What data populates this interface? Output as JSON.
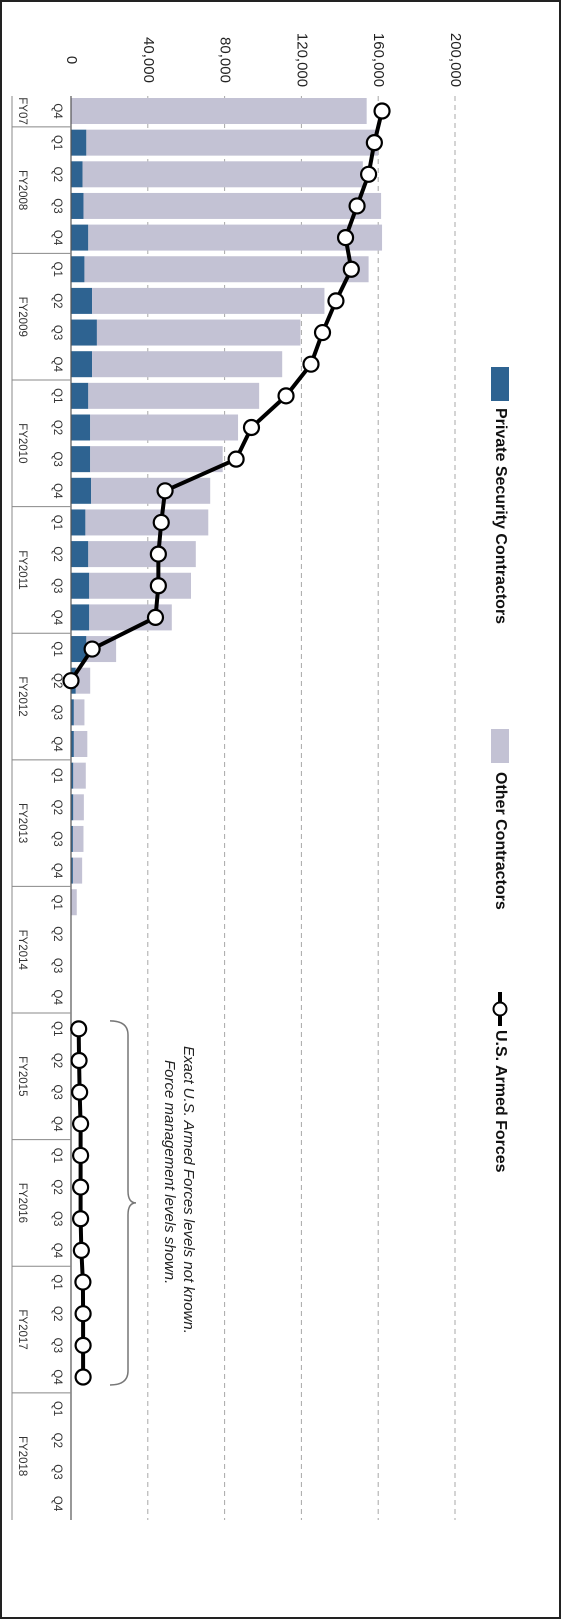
{
  "chart_data": {
    "type": "bar",
    "orientation": "rotated-90-clockwise",
    "stacked": true,
    "ylim": [
      0,
      200000
    ],
    "y_ticks": [
      "0",
      "40,000",
      "80,000",
      "120,000",
      "160,000",
      "200,000"
    ],
    "grid": "dashed",
    "legend_placement": "top",
    "categories": [
      "FY07 Q4",
      "FY2008 Q1",
      "FY2008 Q2",
      "FY2008 Q3",
      "FY2008 Q4",
      "FY2009 Q1",
      "FY2009 Q2",
      "FY2009 Q3",
      "FY2009 Q4",
      "FY2010 Q1",
      "FY2010 Q2",
      "FY2010 Q3",
      "FY2010 Q4",
      "FY2011 Q1",
      "FY2011 Q2",
      "FY2011 Q3",
      "FY2011 Q4",
      "FY2012 Q1",
      "FY2012 Q2",
      "FY2012 Q3",
      "FY2012 Q4",
      "FY2013 Q1",
      "FY2013 Q2",
      "FY2013 Q3",
      "FY2013 Q4",
      "FY2014 Q1",
      "FY2014 Q2",
      "FY2014 Q3",
      "FY2014 Q4",
      "FY2015 Q1",
      "FY2015 Q2",
      "FY2015 Q3",
      "FY2015 Q4",
      "FY2016 Q1",
      "FY2016 Q2",
      "FY2016 Q3",
      "FY2016 Q4",
      "FY2017 Q1",
      "FY2017 Q2",
      "FY2017 Q3",
      "FY2017 Q4",
      "FY2018 Q1",
      "FY2018 Q2",
      "FY2018 Q3",
      "FY2018 Q4"
    ],
    "quarter_labels": [
      "Q4",
      "Q1",
      "Q2",
      "Q3",
      "Q4",
      "Q1",
      "Q2",
      "Q3",
      "Q4",
      "Q1",
      "Q2",
      "Q3",
      "Q4",
      "Q1",
      "Q2",
      "Q3",
      "Q4",
      "Q1",
      "Q2",
      "Q3",
      "Q4",
      "Q1",
      "Q2",
      "Q3",
      "Q4",
      "Q1",
      "Q2",
      "Q3",
      "Q4",
      "Q1",
      "Q2",
      "Q3",
      "Q4",
      "Q1",
      "Q2",
      "Q3",
      "Q4",
      "Q1",
      "Q2",
      "Q3",
      "Q4",
      "Q1",
      "Q2",
      "Q3",
      "Q4"
    ],
    "fiscal_years": [
      "FY07",
      "FY2008",
      "FY2009",
      "FY2010",
      "FY2011",
      "FY2012",
      "FY2013",
      "FY2014",
      "FY2015",
      "FY2016",
      "FY2017",
      "FY2018"
    ],
    "series": [
      {
        "name": "Private Security Contractors",
        "type": "bar",
        "color": "#2e6391",
        "values": [
          0,
          8000,
          6000,
          6500,
          9000,
          7000,
          11000,
          13500,
          11000,
          9000,
          10000,
          10000,
          10500,
          7500,
          9000,
          9500,
          9500,
          8000,
          2500,
          1500,
          1500,
          1200,
          1200,
          1000,
          1000,
          0,
          0,
          0,
          0,
          0,
          0,
          0,
          0,
          0,
          0,
          0,
          0,
          0,
          0,
          0,
          0,
          0,
          0,
          0,
          0
        ]
      },
      {
        "name": "Other Contractors",
        "type": "bar",
        "color": "#c3c2d4",
        "values": [
          154000,
          152000,
          146000,
          155000,
          153000,
          148000,
          121000,
          106000,
          99000,
          89000,
          77000,
          69000,
          62000,
          64000,
          56000,
          53000,
          43000,
          15500,
          7500,
          5500,
          7000,
          6500,
          5500,
          5500,
          4800,
          3000,
          0,
          0,
          0,
          0,
          0,
          0,
          0,
          0,
          0,
          0,
          0,
          0,
          0,
          0,
          0,
          0,
          0,
          0,
          0
        ]
      },
      {
        "name": "U.S. Armed Forces",
        "type": "line",
        "color": "#000000",
        "values": [
          162000,
          158000,
          155000,
          149000,
          143000,
          146000,
          138000,
          131000,
          125000,
          112000,
          94000,
          86000,
          49000,
          47000,
          45500,
          45500,
          44000,
          11000,
          0,
          null,
          null,
          null,
          null,
          null,
          null,
          null,
          null,
          null,
          null,
          4000,
          4200,
          4500,
          5000,
          5000,
          5000,
          5000,
          5400,
          6200,
          6300,
          6300,
          6300,
          null,
          null,
          null,
          null
        ]
      }
    ],
    "annotation": {
      "line1": "Exact U.S. Armed Forces levels not known.",
      "line2": "Force management levels shown.",
      "bracket_from": "FY2015 Q1",
      "bracket_to": "FY2017 Q4"
    }
  }
}
